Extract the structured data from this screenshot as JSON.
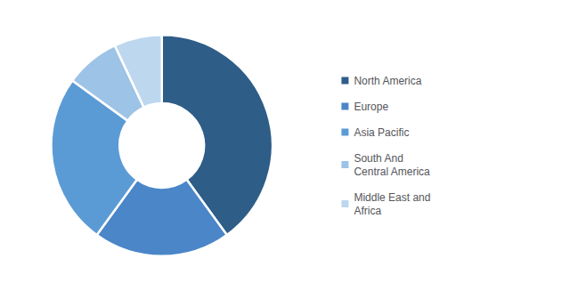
{
  "chart_data": {
    "type": "pie",
    "categories": [
      "North America",
      "Europe",
      "Asia Pacific",
      "South And\nCentral America",
      "Middle East and\nAfrica"
    ],
    "values": [
      40,
      20,
      25,
      8,
      7
    ],
    "colors": [
      "#2e5d87",
      "#4a86c8",
      "#5b9bd5",
      "#9dc3e6",
      "#bdd7ee"
    ],
    "legend": "right"
  }
}
